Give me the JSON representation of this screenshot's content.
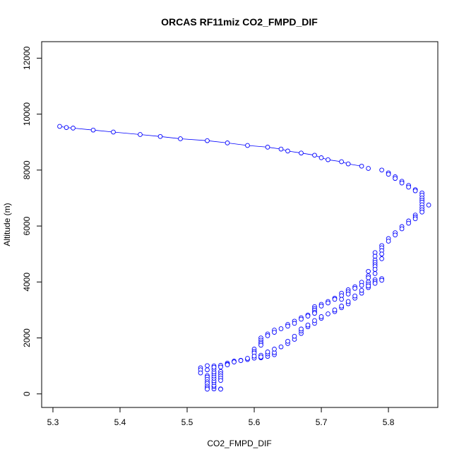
{
  "chart_data": {
    "type": "scatter",
    "title": "ORCAS RF11miz CO2_FMPD_DIF",
    "xlabel": "CO2_FMPD_DIF",
    "ylabel": "Altitude (m)",
    "xlim": [
      5.3,
      5.86
    ],
    "ylim": [
      0,
      12500
    ],
    "x_ticks": [
      "5.3",
      "5.4",
      "5.5",
      "5.6",
      "5.7",
      "5.8"
    ],
    "y_ticks": [
      "0",
      "2000",
      "4000",
      "6000",
      "8000",
      "10000",
      "12000"
    ],
    "grid": false,
    "point_style": "open-circle",
    "colors": {
      "series": "#0000ff",
      "axis": "#000000",
      "background": "#ffffff"
    },
    "series": [
      {
        "values": [
          [
            5.31,
            9560
          ],
          [
            5.32,
            9520
          ],
          [
            5.33,
            9500
          ],
          [
            5.36,
            9430
          ],
          [
            5.39,
            9360
          ],
          [
            5.43,
            9270
          ],
          [
            5.46,
            9200
          ],
          [
            5.49,
            9120
          ],
          [
            5.53,
            9050
          ],
          [
            5.56,
            8970
          ],
          [
            5.59,
            8880
          ],
          [
            5.62,
            8820
          ],
          [
            5.64,
            8750
          ],
          [
            5.65,
            8680
          ],
          [
            5.67,
            8610
          ],
          [
            5.69,
            8530
          ],
          [
            5.7,
            8440
          ],
          [
            5.71,
            8370
          ],
          [
            5.73,
            8300
          ],
          [
            5.74,
            8220
          ],
          [
            5.76,
            8140
          ],
          [
            5.77,
            8060
          ],
          [
            5.79,
            8000
          ],
          [
            5.8,
            7900
          ],
          [
            5.8,
            7850
          ],
          [
            5.81,
            7760
          ],
          [
            5.81,
            7700
          ],
          [
            5.82,
            7600
          ],
          [
            5.82,
            7540
          ],
          [
            5.83,
            7450
          ],
          [
            5.83,
            7390
          ],
          [
            5.84,
            7300
          ],
          [
            5.84,
            7260
          ],
          [
            5.85,
            7180
          ],
          [
            5.85,
            7100
          ],
          [
            5.85,
            7000
          ],
          [
            5.85,
            6920
          ],
          [
            5.85,
            6850
          ],
          [
            5.85,
            6760
          ],
          [
            5.86,
            6750
          ],
          [
            5.85,
            6660
          ],
          [
            5.85,
            6580
          ],
          [
            5.85,
            6500
          ],
          [
            5.84,
            6390
          ],
          [
            5.84,
            6320
          ],
          [
            5.84,
            6260
          ],
          [
            5.83,
            6180
          ],
          [
            5.83,
            6100
          ],
          [
            5.82,
            5980
          ],
          [
            5.82,
            5900
          ],
          [
            5.81,
            5760
          ],
          [
            5.81,
            5680
          ],
          [
            5.8,
            5550
          ],
          [
            5.8,
            5460
          ],
          [
            5.79,
            5300
          ],
          [
            5.79,
            5220
          ],
          [
            5.79,
            5120
          ],
          [
            5.79,
            5000
          ],
          [
            5.78,
            5050
          ],
          [
            5.79,
            4830
          ],
          [
            5.78,
            4920
          ],
          [
            5.78,
            4780
          ],
          [
            5.78,
            4700
          ],
          [
            5.78,
            4620
          ],
          [
            5.78,
            4550
          ],
          [
            5.78,
            4450
          ],
          [
            5.77,
            4380
          ],
          [
            5.78,
            4300
          ],
          [
            5.77,
            4220
          ],
          [
            5.77,
            4150
          ],
          [
            5.79,
            4120
          ],
          [
            5.79,
            4060
          ],
          [
            5.78,
            4080
          ],
          [
            5.78,
            4010
          ],
          [
            5.78,
            3950
          ],
          [
            5.77,
            4000
          ],
          [
            5.77,
            3920
          ],
          [
            5.76,
            3990
          ],
          [
            5.76,
            3880
          ],
          [
            5.75,
            3830
          ],
          [
            5.75,
            3770
          ],
          [
            5.74,
            3720
          ],
          [
            5.74,
            3650
          ],
          [
            5.74,
            3570
          ],
          [
            5.73,
            3600
          ],
          [
            5.73,
            3510
          ],
          [
            5.72,
            3420
          ],
          [
            5.73,
            3380
          ],
          [
            5.72,
            3380
          ],
          [
            5.71,
            3300
          ],
          [
            5.71,
            3250
          ],
          [
            5.7,
            3200
          ],
          [
            5.7,
            3140
          ],
          [
            5.69,
            3120
          ],
          [
            5.69,
            3050
          ],
          [
            5.69,
            2990
          ],
          [
            5.69,
            2920
          ],
          [
            5.69,
            2880
          ],
          [
            5.68,
            2820
          ],
          [
            5.68,
            2780
          ],
          [
            5.67,
            2720
          ],
          [
            5.67,
            2670
          ],
          [
            5.66,
            2600
          ],
          [
            5.66,
            2520
          ],
          [
            5.65,
            2480
          ],
          [
            5.65,
            2420
          ],
          [
            5.64,
            2330
          ],
          [
            5.63,
            2280
          ],
          [
            5.63,
            2200
          ],
          [
            5.62,
            2140
          ],
          [
            5.62,
            2080
          ],
          [
            5.61,
            2000
          ],
          [
            5.61,
            1920
          ],
          [
            5.61,
            1850
          ],
          [
            5.61,
            1800
          ],
          [
            5.61,
            1740
          ],
          [
            5.6,
            1600
          ],
          [
            5.6,
            1520
          ],
          [
            5.6,
            1460
          ],
          [
            5.61,
            1380
          ],
          [
            5.61,
            1290
          ],
          [
            5.6,
            1280
          ],
          [
            5.59,
            1230
          ],
          [
            5.58,
            1200
          ],
          [
            5.57,
            1170
          ],
          [
            5.56,
            1100
          ],
          [
            5.56,
            1060
          ],
          [
            5.55,
            1020
          ],
          [
            5.55,
            960
          ],
          [
            5.54,
            1000
          ],
          [
            5.53,
            1010
          ],
          [
            5.52,
            930
          ],
          [
            5.52,
            860
          ],
          [
            5.52,
            750
          ],
          [
            5.53,
            860
          ],
          [
            5.53,
            650
          ],
          [
            5.53,
            600
          ],
          [
            5.53,
            520
          ],
          [
            5.53,
            430
          ],
          [
            5.53,
            370
          ],
          [
            5.53,
            280
          ],
          [
            5.53,
            220
          ],
          [
            5.53,
            170
          ],
          [
            5.54,
            180
          ],
          [
            5.54,
            260
          ],
          [
            5.54,
            310
          ],
          [
            5.54,
            400
          ],
          [
            5.54,
            470
          ],
          [
            5.54,
            560
          ],
          [
            5.54,
            640
          ],
          [
            5.54,
            720
          ],
          [
            5.54,
            790
          ],
          [
            5.54,
            880
          ],
          [
            5.54,
            950
          ],
          [
            5.55,
            800
          ],
          [
            5.55,
            720
          ],
          [
            5.55,
            640
          ],
          [
            5.55,
            560
          ],
          [
            5.55,
            480
          ],
          [
            5.55,
            180
          ],
          [
            5.55,
            170
          ],
          [
            5.56,
            1040
          ],
          [
            5.57,
            1140
          ],
          [
            5.58,
            1190
          ],
          [
            5.59,
            1270
          ],
          [
            5.6,
            1350
          ],
          [
            5.61,
            1320
          ],
          [
            5.62,
            1340
          ],
          [
            5.62,
            1430
          ],
          [
            5.62,
            1500
          ],
          [
            5.63,
            1400
          ],
          [
            5.63,
            1480
          ],
          [
            5.63,
            1600
          ],
          [
            5.64,
            1680
          ],
          [
            5.65,
            1800
          ],
          [
            5.65,
            1880
          ],
          [
            5.66,
            1950
          ],
          [
            5.66,
            2060
          ],
          [
            5.67,
            2160
          ],
          [
            5.67,
            2250
          ],
          [
            5.67,
            2320
          ],
          [
            5.68,
            2400
          ],
          [
            5.68,
            2460
          ],
          [
            5.69,
            2520
          ],
          [
            5.69,
            2620
          ],
          [
            5.7,
            2700
          ],
          [
            5.7,
            2760
          ],
          [
            5.71,
            2860
          ],
          [
            5.72,
            2940
          ],
          [
            5.72,
            3000
          ],
          [
            5.73,
            3080
          ],
          [
            5.73,
            3140
          ],
          [
            5.74,
            3220
          ],
          [
            5.74,
            3300
          ],
          [
            5.75,
            3420
          ],
          [
            5.75,
            3500
          ],
          [
            5.76,
            3600
          ],
          [
            5.76,
            3700
          ],
          [
            5.77,
            3800
          ],
          [
            5.77,
            3860
          ]
        ]
      }
    ]
  }
}
